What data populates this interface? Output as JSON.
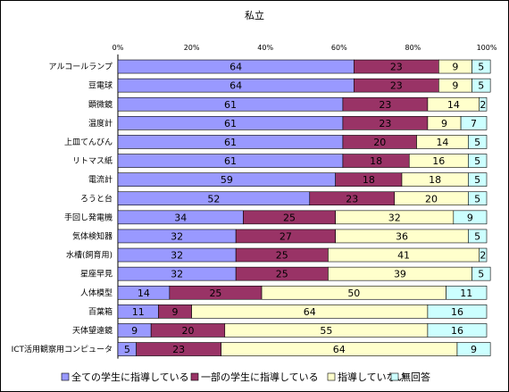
{
  "chart_data": {
    "type": "bar",
    "stacked": true,
    "orientation": "horizontal",
    "title": "私立",
    "xlim": [
      0,
      100
    ],
    "x_ticks": [
      "0%",
      "20%",
      "40%",
      "60%",
      "80%",
      "100%"
    ],
    "legend_position": "bottom",
    "categories": [
      "アルコールランプ",
      "豆電球",
      "顕微鏡",
      "温度計",
      "上皿てんびん",
      "リトマス紙",
      "電流計",
      "ろうと台",
      "手回し発電機",
      "気体検知器",
      "水槽(飼育用)",
      "星座早見",
      "人体模型",
      "百葉箱",
      "天体望遠鏡",
      "ICT活用観察用コンピュータ"
    ],
    "series": [
      {
        "name": "全ての学生に指導している",
        "color": "#9999ff",
        "values": [
          64,
          64,
          61,
          61,
          61,
          61,
          59,
          52,
          34,
          32,
          32,
          32,
          14,
          11,
          9,
          5
        ]
      },
      {
        "name": "一部の学生に指導している",
        "color": "#993366",
        "values": [
          23,
          23,
          23,
          23,
          20,
          18,
          18,
          23,
          25,
          27,
          25,
          25,
          25,
          9,
          20,
          23
        ]
      },
      {
        "name": "指導していない",
        "color": "#ffffcc",
        "values": [
          9,
          9,
          14,
          9,
          14,
          16,
          18,
          20,
          32,
          36,
          41,
          39,
          50,
          64,
          55,
          64
        ]
      },
      {
        "name": "無回答",
        "color": "#ccffff",
        "values": [
          5,
          5,
          2,
          7,
          5,
          5,
          5,
          5,
          9,
          5,
          2,
          5,
          11,
          16,
          16,
          9
        ]
      }
    ]
  }
}
